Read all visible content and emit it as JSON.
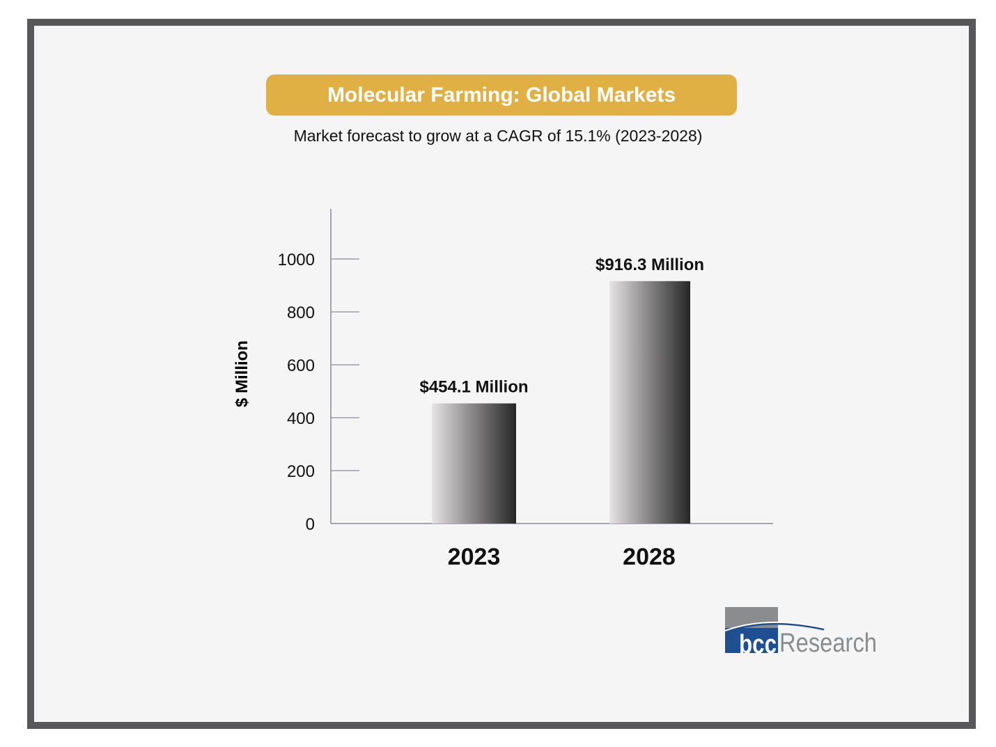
{
  "header": {
    "title": "Molecular Farming: Global Markets",
    "subtitle": "Market forecast to grow at a CAGR of 15.1% (2023-2028)"
  },
  "colors": {
    "banner": "#e0b044",
    "frame": "#58585a",
    "logo_blue": "#1d4f91",
    "logo_gray": "#8a8c8e"
  },
  "logo": {
    "text_bcc": "bcc",
    "text_research": "Research"
  },
  "chart_data": {
    "type": "bar",
    "title": "Molecular Farming: Global Markets",
    "categories": [
      "2023",
      "2028"
    ],
    "values": [
      454.1,
      916.3
    ],
    "data_labels": [
      "$454.1 Million",
      "$916.3 Million"
    ],
    "xlabel": "",
    "ylabel": "$ Million",
    "ylim": [
      0,
      1000
    ],
    "yticks": [
      0,
      200,
      400,
      600,
      800,
      1000
    ],
    "grid": false
  }
}
